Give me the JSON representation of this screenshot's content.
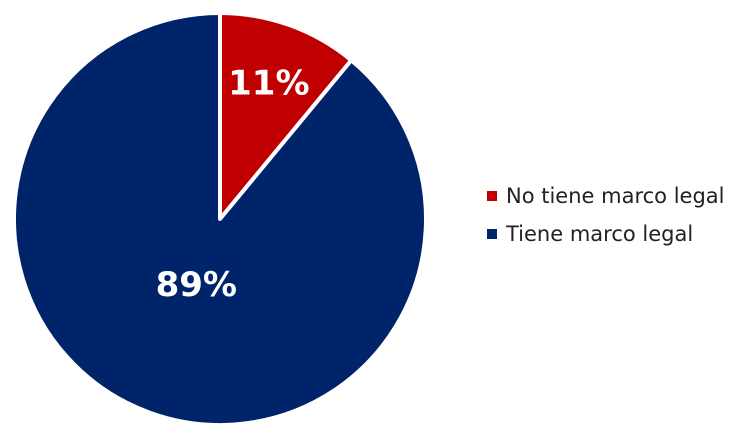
{
  "chart_data": {
    "type": "pie",
    "slices": [
      {
        "label": "No tiene marco legal",
        "value": 11,
        "display": "11%",
        "color": "#c00000"
      },
      {
        "label": "Tiene marco legal",
        "value": 89,
        "display": "89%",
        "color": "#002469"
      }
    ],
    "legend_position": "right",
    "start_angle": "top",
    "direction": "clockwise",
    "slice_border_color": "#ffffff"
  }
}
